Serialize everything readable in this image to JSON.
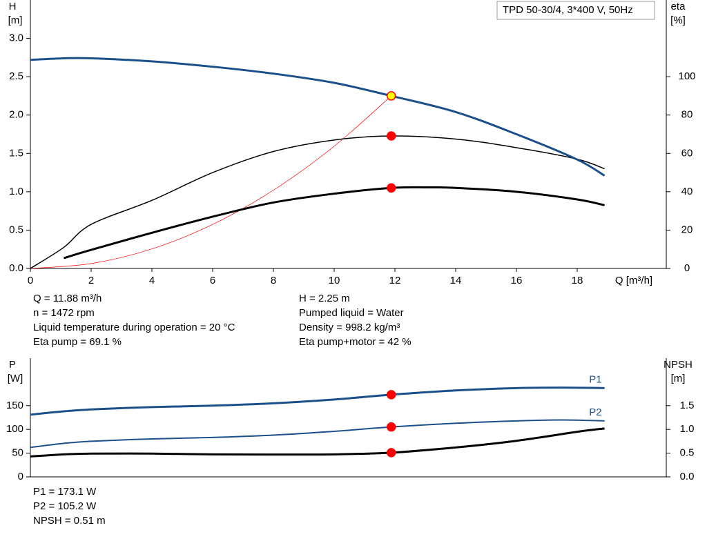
{
  "chart_data": [
    {
      "type": "line",
      "title": "TPD 50-30/4, 3*400 V, 50Hz",
      "ylabel": "H",
      "yunit": "[m]",
      "y2label": "eta",
      "y2unit": "[%]",
      "xlabel": "Q [m³/h]",
      "xlim": [
        0,
        21
      ],
      "xticks": [
        0,
        2,
        4,
        6,
        8,
        10,
        12,
        14,
        16,
        18
      ],
      "ylim": [
        0,
        3.5
      ],
      "yticks": [
        {
          "value": 0,
          "label": "0.0"
        },
        0.5,
        {
          "value": 1,
          "label": "1.0"
        },
        1.5,
        {
          "value": 2,
          "label": "2.0"
        },
        2.5,
        {
          "value": 3,
          "label": "3.0"
        }
      ],
      "y2lim": [
        0,
        140
      ],
      "y2ticks": [
        0,
        20,
        40,
        60,
        80,
        100
      ],
      "series": [
        {
          "color": "#ff0000",
          "line_width": 0.7,
          "x": [
            0,
            2,
            4,
            6,
            8,
            10,
            11.88
          ],
          "values": [
            0,
            0.064,
            0.255,
            0.574,
            1.02,
            1.594,
            2.25
          ]
        },
        {
          "color": "#000000",
          "line_width": 1.5,
          "axis": "y2",
          "x": [
            0,
            1.1,
            2,
            4,
            6,
            8,
            10,
            11.88,
            14,
            16,
            18,
            18.9
          ],
          "values": [
            0,
            11,
            23,
            35.5,
            50,
            61,
            67,
            69.1,
            67.5,
            63,
            57,
            52
          ]
        },
        {
          "color": "#000000",
          "line_width": 3,
          "axis": "y2",
          "x": [
            1.1,
            2,
            4,
            6,
            8,
            10,
            11.88,
            13,
            14,
            16,
            18,
            18.9
          ],
          "values": [
            5.4,
            9.7,
            18.6,
            27,
            34.4,
            39,
            42,
            42.3,
            42,
            40,
            36,
            33
          ]
        },
        {
          "color": "#1a4f8a",
          "line_width": 3,
          "x": [
            0,
            1.1,
            2,
            4,
            6,
            8,
            10,
            11.88,
            14,
            16,
            18,
            18.9
          ],
          "values": [
            2.72,
            2.74,
            2.74,
            2.7,
            2.63,
            2.54,
            2.42,
            2.25,
            2.04,
            1.75,
            1.42,
            1.21
          ]
        }
      ],
      "markers": [
        {
          "x": 11.88,
          "y": 2.25,
          "color": "#ffff00"
        },
        {
          "x": 11.88,
          "y": 69.1,
          "color": "#ff0000",
          "axis": "y2"
        },
        {
          "x": 11.88,
          "y": 42,
          "color": "#ff0000",
          "axis": "y2"
        }
      ],
      "info_left": [
        "Q = 11.88 m³/h",
        "n = 1472 rpm",
        "Liquid temperature during operation = 20 °C",
        "Eta pump = 69.1 %"
      ],
      "info_right": [
        "H = 2.25 m",
        "Pumped liquid = Water",
        "Density = 998.2 kg/m³",
        "Eta pump+motor = 42 %"
      ]
    },
    {
      "type": "line",
      "ylabel": "P",
      "yunit": "[W]",
      "y2label": "NPSH",
      "y2unit": "[m]",
      "xlim": [
        0,
        21
      ],
      "ylim": [
        0,
        250
      ],
      "yticks": [
        0,
        50,
        100,
        150
      ],
      "y2lim": [
        0,
        2.5
      ],
      "y2ticks": [
        {
          "value": 0,
          "label": "0.0"
        },
        0.5,
        {
          "value": 1,
          "label": "1.0"
        },
        1.5
      ],
      "series": [
        {
          "name": "P1",
          "color": "#1a4f8a",
          "line_width": 3,
          "x": [
            0,
            1.1,
            2,
            4,
            6,
            8,
            10,
            11.88,
            14,
            16,
            17.5,
            18.9
          ],
          "values": [
            131,
            138,
            142,
            147,
            150,
            155,
            163,
            173.1,
            182,
            187,
            188,
            187
          ]
        },
        {
          "name": "P2",
          "color": "#1a4f8a",
          "line_width": 2,
          "x": [
            0,
            1.1,
            2,
            4,
            6,
            8,
            10,
            11.88,
            14,
            16,
            17.5,
            18.9
          ],
          "values": [
            62,
            70.6,
            75,
            80,
            83,
            88,
            96,
            105.2,
            113,
            118,
            120,
            118
          ]
        },
        {
          "color": "#000000",
          "line_width": 3,
          "axis": "y2",
          "x": [
            0,
            1.1,
            2,
            4,
            6,
            8,
            10,
            11.88,
            14,
            16,
            18,
            18.9
          ],
          "values": [
            0.43,
            0.475,
            0.49,
            0.49,
            0.475,
            0.47,
            0.475,
            0.51,
            0.62,
            0.76,
            0.95,
            1.02
          ]
        }
      ],
      "markers": [
        {
          "x": 11.88,
          "y": 173.1,
          "color": "#ff0000"
        },
        {
          "x": 11.88,
          "y": 105.2,
          "color": "#ff0000"
        },
        {
          "x": 11.88,
          "y": 0.51,
          "color": "#ff0000",
          "axis": "y2"
        }
      ],
      "info_left": [
        "P1 = 173.1 W",
        "P2 = 105.2 W",
        "NPSH = 0.51 m"
      ]
    }
  ]
}
